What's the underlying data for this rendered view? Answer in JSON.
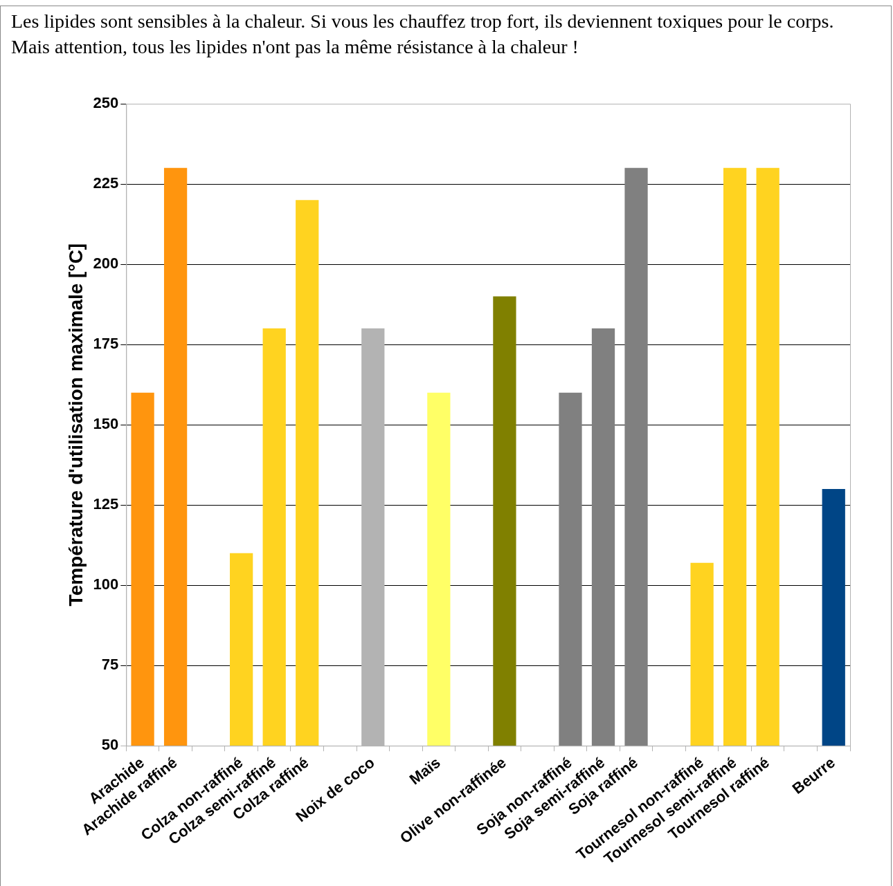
{
  "chart_data": {
    "type": "bar",
    "title": "Les lipides sont sensibles à la chaleur. Si vous les chauffez trop fort, ils deviennent toxiques pour le corps. Mais attention, tous les lipides n'ont pas la même résistance à la chaleur !",
    "ylabel": "Température d'utilisation maximale [°C]",
    "categories": [
      "Arachide",
      "Arachide raffiné",
      null,
      "Colza non-raffiné",
      "Colza semi-raffiné",
      "Colza raffiné",
      null,
      "Noix de coco",
      null,
      "Maïs",
      null,
      "Olive non-raffinée",
      null,
      "Soja non-raffiné",
      "Soja semi-raffiné",
      "Soja raffiné",
      null,
      "Tournesol non-raffiné",
      "Tournesol semi-raffiné",
      "Tournesol raffiné",
      null,
      "Beurre"
    ],
    "values": [
      160,
      230,
      null,
      110,
      180,
      220,
      null,
      180,
      null,
      160,
      null,
      190,
      null,
      160,
      180,
      230,
      null,
      107,
      230,
      230,
      null,
      130
    ],
    "colors": [
      "#ff950e",
      "#ff950e",
      "#ffffff",
      "#ffd320",
      "#ffd320",
      "#ffd320",
      "#ffffff",
      "#b3b3b3",
      "#ffffff",
      "#ffff66",
      "#ffffff",
      "#808000",
      "#ffffff",
      "#808080",
      "#808080",
      "#808080",
      "#ffffff",
      "#ffd320",
      "#ffd320",
      "#ffd320",
      "#ffffff",
      "#004586"
    ],
    "ylim": [
      50,
      250
    ],
    "yticks": [
      50,
      75,
      100,
      125,
      150,
      175,
      200,
      225,
      250
    ],
    "grid": "y",
    "legend": false
  }
}
